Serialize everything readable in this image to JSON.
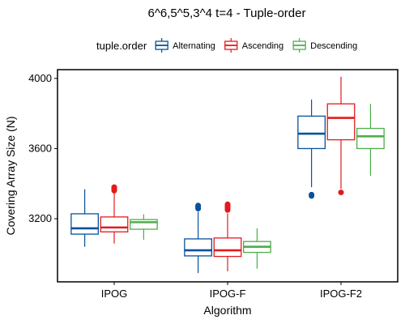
{
  "chart_data": {
    "type": "box",
    "title": "6^6,5^5,3^4 t=4 - Tuple-order",
    "xlabel": "Algorithm",
    "ylabel": "Covering Array Size (N)",
    "categories": [
      "IPOG",
      "IPOG-F",
      "IPOG-F2"
    ],
    "ylim": [
      2840,
      4050
    ],
    "yticks": [
      3200,
      3600,
      4000
    ],
    "legend": {
      "title": "tuple.order",
      "position": "top"
    },
    "grid": false,
    "series": [
      {
        "name": "Alternating",
        "color": "#08519c",
        "boxes": [
          {
            "min": 3040,
            "q1": 3112,
            "median": 3145,
            "q3": 3228,
            "max": 3368,
            "outliers": []
          },
          {
            "min": 2890,
            "q1": 2988,
            "median": 3020,
            "q3": 3085,
            "max": 3240,
            "outliers": [
              3258,
              3265,
              3270,
              3275
            ]
          },
          {
            "min": 3380,
            "q1": 3600,
            "median": 3685,
            "q3": 3785,
            "max": 3880,
            "outliers": [
              3330,
              3337
            ]
          }
        ]
      },
      {
        "name": "Ascending",
        "color": "#e41a1c",
        "boxes": [
          {
            "min": 3058,
            "q1": 3125,
            "median": 3150,
            "q3": 3210,
            "max": 3350,
            "outliers": [
              3360,
              3365,
              3370,
              3375,
              3380
            ]
          },
          {
            "min": 2900,
            "q1": 2985,
            "median": 3020,
            "q3": 3090,
            "max": 3230,
            "outliers": [
              3250,
              3260,
              3268,
              3275,
              3282
            ]
          },
          {
            "min": 3370,
            "q1": 3650,
            "median": 3775,
            "q3": 3855,
            "max": 4010,
            "outliers": [
              3350
            ]
          }
        ]
      },
      {
        "name": "Descending",
        "color": "#4daf4a",
        "boxes": [
          {
            "min": 3080,
            "q1": 3140,
            "median": 3180,
            "q3": 3195,
            "max": 3225,
            "outliers": []
          },
          {
            "min": 2915,
            "q1": 3008,
            "median": 3040,
            "q3": 3070,
            "max": 3145,
            "outliers": []
          },
          {
            "min": 3445,
            "q1": 3600,
            "median": 3670,
            "q3": 3715,
            "max": 3855,
            "outliers": []
          }
        ]
      }
    ]
  }
}
